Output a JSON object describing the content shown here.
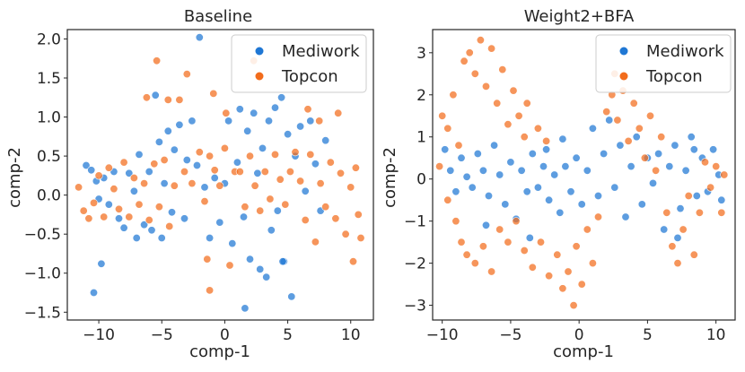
{
  "chart_data": [
    {
      "type": "scatter",
      "title": "Baseline",
      "xlabel": "comp-1",
      "ylabel": "comp-2",
      "xlim": [
        -12.5,
        11.8
      ],
      "ylim": [
        -1.6,
        2.12
      ],
      "xticks": [
        -10,
        -5,
        0,
        5,
        10
      ],
      "xtick_labels": [
        "−10",
        "−5",
        "0",
        "5",
        "10"
      ],
      "yticks": [
        -1.5,
        -1.0,
        -0.5,
        0.0,
        0.5,
        1.0,
        1.5,
        2.0
      ],
      "ytick_labels": [
        "−1.5",
        "−1.0",
        "−0.5",
        "0.0",
        "0.5",
        "1.0",
        "1.5",
        "2.0"
      ],
      "legend_position": "top-right",
      "series": [
        {
          "name": "Mediwork",
          "color": "#1f77d4",
          "points": [
            [
              -11,
              0.38
            ],
            [
              -10.6,
              0.32
            ],
            [
              -10.2,
              0.18
            ],
            [
              -10,
              -0.05
            ],
            [
              -9.6,
              0.22
            ],
            [
              -9.2,
              -0.12
            ],
            [
              -8.8,
              0.3
            ],
            [
              -8.4,
              -0.3
            ],
            [
              -8,
              -0.42
            ],
            [
              -7.6,
              0.28
            ],
            [
              -7.2,
              0.05
            ],
            [
              -6.8,
              0.52
            ],
            [
              -6.4,
              -0.38
            ],
            [
              -6,
              0.3
            ],
            [
              -5.8,
              -0.45
            ],
            [
              -5.5,
              1.28
            ],
            [
              -5.2,
              0.68
            ],
            [
              -5,
              -0.55
            ],
            [
              -4.8,
              0.15
            ],
            [
              -4.5,
              0.82
            ],
            [
              -4.2,
              -0.22
            ],
            [
              -4,
              0.58
            ],
            [
              -3.6,
              0.9
            ],
            [
              -3.2,
              -0.3
            ],
            [
              -3,
              0.45
            ],
            [
              -2.6,
              0.95
            ],
            [
              -2.2,
              0.38
            ],
            [
              -2,
              2.02
            ],
            [
              -1.6,
              0.1
            ],
            [
              -1.2,
              -0.55
            ],
            [
              -0.8,
              0.22
            ],
            [
              -0.4,
              -0.35
            ],
            [
              0,
              0.15
            ],
            [
              0.3,
              0.95
            ],
            [
              0.6,
              -0.62
            ],
            [
              1,
              0.42
            ],
            [
              1.2,
              1.1
            ],
            [
              1.5,
              -0.28
            ],
            [
              1.8,
              0.82
            ],
            [
              2,
              -0.82
            ],
            [
              2.3,
              1.05
            ],
            [
              2.6,
              0.28
            ],
            [
              2.8,
              -0.95
            ],
            [
              3,
              0.6
            ],
            [
              3.3,
              -1.05
            ],
            [
              3.5,
              0.95
            ],
            [
              3.7,
              -0.45
            ],
            [
              4,
              1.12
            ],
            [
              4.2,
              -0.2
            ],
            [
              4.5,
              1.25
            ],
            [
              4.7,
              -0.85
            ],
            [
              5,
              0.78
            ],
            [
              5.3,
              -1.3
            ],
            [
              5.6,
              0.5
            ],
            [
              6,
              0.88
            ],
            [
              6.4,
              0.05
            ],
            [
              6.8,
              0.95
            ],
            [
              7.2,
              0.4
            ],
            [
              7.6,
              -0.2
            ],
            [
              8,
              0.7
            ],
            [
              -9.8,
              -0.88
            ],
            [
              -10.4,
              -1.25
            ],
            [
              -7,
              -0.55
            ],
            [
              1.6,
              -1.45
            ],
            [
              4.6,
              -0.85
            ]
          ]
        },
        {
          "name": "Topcon",
          "color": "#f26c1c",
          "points": [
            [
              -11.6,
              0.1
            ],
            [
              -11.2,
              -0.2
            ],
            [
              -10.8,
              -0.3
            ],
            [
              -10.4,
              -0.1
            ],
            [
              -10,
              0.25
            ],
            [
              -9.6,
              -0.28
            ],
            [
              -9.2,
              0.35
            ],
            [
              -8.8,
              0.08
            ],
            [
              -8.4,
              -0.18
            ],
            [
              -8,
              0.42
            ],
            [
              -7.6,
              -0.28
            ],
            [
              -7.2,
              0.22
            ],
            [
              -6.8,
              -0.12
            ],
            [
              -6.4,
              0.15
            ],
            [
              -6,
              -0.32
            ],
            [
              -5.6,
              0.4
            ],
            [
              -5.4,
              1.72
            ],
            [
              -5.2,
              -0.15
            ],
            [
              -4.8,
              0.45
            ],
            [
              -4.4,
              -0.4
            ],
            [
              -4,
              0.12
            ],
            [
              -3.6,
              1.22
            ],
            [
              -3.2,
              0.3
            ],
            [
              -3,
              1.55
            ],
            [
              -2.6,
              0.15
            ],
            [
              -2,
              0.55
            ],
            [
              -1.6,
              -0.08
            ],
            [
              -1.2,
              0.5
            ],
            [
              -0.8,
              0.32
            ],
            [
              -0.4,
              0.12
            ],
            [
              0,
              0.6
            ],
            [
              0.4,
              -0.9
            ],
            [
              0.8,
              0.3
            ],
            [
              -1.4,
              -0.82
            ],
            [
              -1.2,
              -1.22
            ],
            [
              1.2,
              0.3
            ],
            [
              1.6,
              -0.15
            ],
            [
              2,
              0.5
            ],
            [
              2.4,
              0.12
            ],
            [
              2.8,
              -0.2
            ],
            [
              3.2,
              0.3
            ],
            [
              3.6,
              -0.05
            ],
            [
              4,
              0.52
            ],
            [
              4.4,
              0.2
            ],
            [
              4.8,
              -0.12
            ],
            [
              5.2,
              0.3
            ],
            [
              5.6,
              0.55
            ],
            [
              6,
              0.18
            ],
            [
              6.4,
              -0.32
            ],
            [
              6.8,
              0.52
            ],
            [
              7.2,
              -0.6
            ],
            [
              7.6,
              0.15
            ],
            [
              8,
              -0.15
            ],
            [
              8.4,
              0.42
            ],
            [
              8.8,
              -0.3
            ],
            [
              9.2,
              0.28
            ],
            [
              9.6,
              -0.5
            ],
            [
              10,
              0.1
            ],
            [
              10.2,
              -0.85
            ],
            [
              10.4,
              0.35
            ],
            [
              10.6,
              -0.25
            ],
            [
              10.8,
              -0.55
            ],
            [
              9,
              1.05
            ],
            [
              7.5,
              0.95
            ],
            [
              6.6,
              1.1
            ],
            [
              -6.2,
              1.25
            ],
            [
              -4.5,
              1.22
            ],
            [
              -0.9,
              1.3
            ],
            [
              0.1,
              1.05
            ],
            [
              2.3,
              1.72
            ]
          ]
        }
      ]
    },
    {
      "type": "scatter",
      "title": "Weight2+BFA",
      "xlabel": "comp-1",
      "ylabel": "comp-2",
      "xlim": [
        -10.7,
        11.4
      ],
      "ylim": [
        -3.35,
        3.55
      ],
      "xticks": [
        -10,
        -5,
        0,
        5,
        10
      ],
      "xtick_labels": [
        "−10",
        "−5",
        "0",
        "5",
        "10"
      ],
      "yticks": [
        -3,
        -2,
        -1,
        0,
        1,
        2,
        3
      ],
      "ytick_labels": [
        "−3",
        "−2",
        "−1",
        "0",
        "1",
        "2",
        "3"
      ],
      "legend_position": "top-right",
      "series": [
        {
          "name": "Mediwork",
          "color": "#1f77d4",
          "points": [
            [
              -9.8,
              0.7
            ],
            [
              -9.4,
              0.2
            ],
            [
              -9,
              -0.3
            ],
            [
              -8.6,
              0.5
            ],
            [
              -8.2,
              0.05
            ],
            [
              -7.8,
              -0.2
            ],
            [
              -7.4,
              0.6
            ],
            [
              -7,
              0.2
            ],
            [
              -6.6,
              -0.4
            ],
            [
              -6.2,
              0.8
            ],
            [
              -5.8,
              0.1
            ],
            [
              -5.4,
              -0.6
            ],
            [
              -5,
              0.4
            ],
            [
              -4.6,
              -0.95
            ],
            [
              -4.2,
              0.2
            ],
            [
              -3.8,
              -0.3
            ],
            [
              -3.4,
              0.6
            ],
            [
              -3,
              -0.2
            ],
            [
              -2.6,
              0.3
            ],
            [
              -2.2,
              -0.5
            ],
            [
              -1.8,
              0.1
            ],
            [
              -1.4,
              -0.8
            ],
            [
              -1,
              0.3
            ],
            [
              -0.6,
              -0.3
            ],
            [
              -0.2,
              0.5
            ],
            [
              0.2,
              -0.6
            ],
            [
              0.6,
              0.2
            ],
            [
              1,
              1.2
            ],
            [
              1.4,
              -0.4
            ],
            [
              1.8,
              0.6
            ],
            [
              2.2,
              1.4
            ],
            [
              2.6,
              -0.2
            ],
            [
              3,
              0.8
            ],
            [
              3.4,
              -0.9
            ],
            [
              3.8,
              0.3
            ],
            [
              4.2,
              1.0
            ],
            [
              4.6,
              -0.6
            ],
            [
              5,
              0.5
            ],
            [
              5.4,
              -0.1
            ],
            [
              5.8,
              0.6
            ],
            [
              6.2,
              -1.2
            ],
            [
              6.6,
              0.3
            ],
            [
              7,
              0.8
            ],
            [
              7.4,
              -0.7
            ],
            [
              7.8,
              0.2
            ],
            [
              8.2,
              1.0
            ],
            [
              8.6,
              -0.4
            ],
            [
              9,
              0.5
            ],
            [
              9.4,
              -0.3
            ],
            [
              9.8,
              0.7
            ],
            [
              10.2,
              0.1
            ],
            [
              10.4,
              -0.5
            ],
            [
              8.4,
              0.7
            ],
            [
              7.2,
              -1.4
            ],
            [
              -1.2,
              0.95
            ],
            [
              -2.4,
              0.7
            ],
            [
              -3.6,
              -1.4
            ],
            [
              -6.8,
              -1.1
            ]
          ]
        },
        {
          "name": "Topcon",
          "color": "#f26c1c",
          "points": [
            [
              -10,
              1.5
            ],
            [
              -9.6,
              1.2
            ],
            [
              -9.2,
              2.0
            ],
            [
              -8.8,
              0.8
            ],
            [
              -8.4,
              2.8
            ],
            [
              -8,
              3.0
            ],
            [
              -7.6,
              2.5
            ],
            [
              -7.2,
              3.3
            ],
            [
              -6.8,
              2.2
            ],
            [
              -6.4,
              3.1
            ],
            [
              -6,
              1.8
            ],
            [
              -5.6,
              2.6
            ],
            [
              -5.2,
              1.3
            ],
            [
              -4.8,
              2.1
            ],
            [
              -4.4,
              1.5
            ],
            [
              -4,
              1.0
            ],
            [
              -9.6,
              -0.5
            ],
            [
              -9,
              -1.0
            ],
            [
              -8.6,
              -1.5
            ],
            [
              -8.2,
              -1.8
            ],
            [
              -7.6,
              -2.0
            ],
            [
              -7,
              -1.6
            ],
            [
              -6.4,
              -2.2
            ],
            [
              -5.8,
              -1.2
            ],
            [
              -5.2,
              -1.5
            ],
            [
              -4.6,
              -1.0
            ],
            [
              -4,
              -1.7
            ],
            [
              -3.4,
              -2.1
            ],
            [
              -2.8,
              -1.5
            ],
            [
              -2.2,
              -2.3
            ],
            [
              -1.6,
              -1.8
            ],
            [
              -1.2,
              -2.6
            ],
            [
              -0.8,
              -2.2
            ],
            [
              -0.4,
              -3.0
            ],
            [
              -0.2,
              -1.6
            ],
            [
              0.2,
              -2.5
            ],
            [
              0.6,
              -1.2
            ],
            [
              1,
              -2.0
            ],
            [
              1.4,
              -0.9
            ],
            [
              2,
              1.6
            ],
            [
              2.4,
              2.0
            ],
            [
              2.8,
              1.4
            ],
            [
              3.2,
              2.1
            ],
            [
              3.6,
              0.9
            ],
            [
              4,
              1.8
            ],
            [
              4.4,
              1.2
            ],
            [
              4.8,
              0.5
            ],
            [
              5.2,
              1.5
            ],
            [
              5.6,
              0.2
            ],
            [
              6,
              1.0
            ],
            [
              6.4,
              -0.8
            ],
            [
              6.8,
              -1.6
            ],
            [
              7.2,
              -2.0
            ],
            [
              7.6,
              -1.2
            ],
            [
              8,
              -0.4
            ],
            [
              8.4,
              -1.8
            ],
            [
              8.8,
              -0.8
            ],
            [
              9.2,
              0.4
            ],
            [
              9.6,
              -0.2
            ],
            [
              10,
              0.3
            ],
            [
              10.4,
              -0.8
            ],
            [
              10.6,
              0.1
            ],
            [
              -10.2,
              0.3
            ],
            [
              -3.8,
              1.8
            ],
            [
              -3,
              1.2
            ],
            [
              -2.4,
              0.9
            ],
            [
              2.6,
              2.5
            ]
          ]
        }
      ]
    }
  ]
}
